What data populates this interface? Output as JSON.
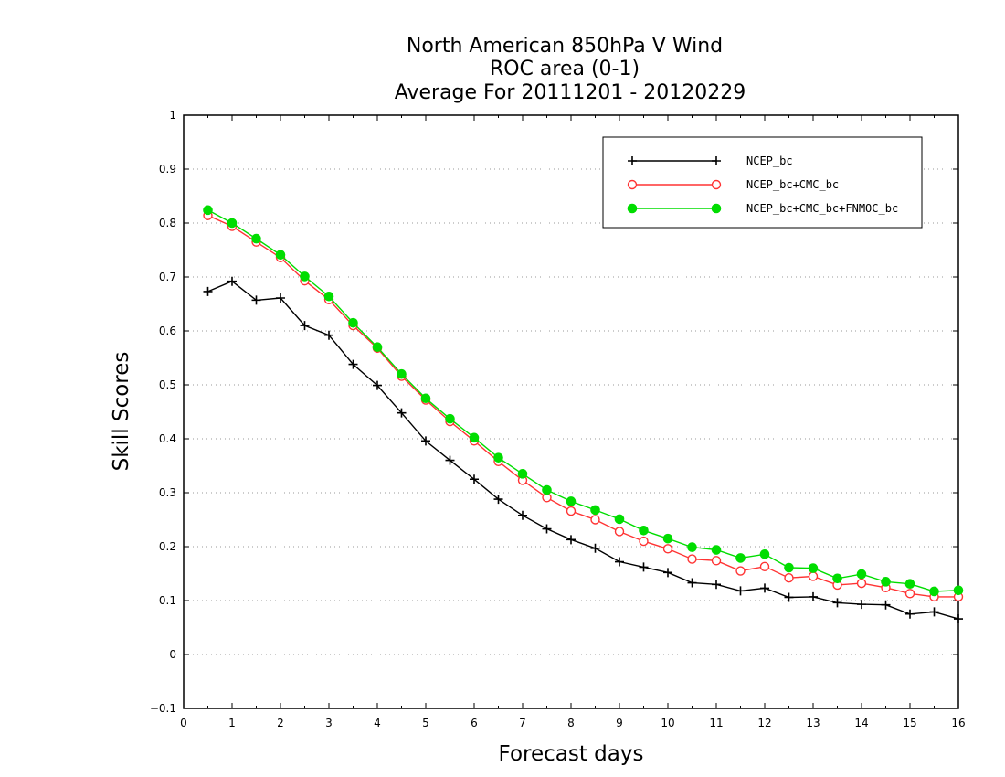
{
  "chart_data": {
    "type": "line",
    "title": [
      "North American 850hPa V Wind",
      "ROC area (0-1)",
      "Average For 20111201 - 20120229"
    ],
    "xlabel": "Forecast days",
    "ylabel": "Skill Scores",
    "xlim": [
      0,
      16
    ],
    "ylim": [
      -0.1,
      1
    ],
    "xticks": [
      "0",
      "1",
      "2",
      "3",
      "4",
      "5",
      "6",
      "7",
      "8",
      "9",
      "10",
      "11",
      "12",
      "13",
      "14",
      "15",
      "16"
    ],
    "yticks": [
      "−0.1",
      "0",
      "0.1",
      "0.2",
      "0.3",
      "0.4",
      "0.5",
      "0.6",
      "0.7",
      "0.8",
      "0.9",
      "1"
    ],
    "grid": true,
    "legend_position": "top-right",
    "x": [
      0.5,
      1,
      1.5,
      2,
      2.5,
      3,
      3.5,
      4,
      4.5,
      5,
      5.5,
      6,
      6.5,
      7,
      7.5,
      8,
      8.5,
      9,
      9.5,
      10,
      10.5,
      11,
      11.5,
      12,
      12.5,
      13,
      13.5,
      14,
      14.5,
      15,
      15.5,
      16
    ],
    "series": [
      {
        "name": "NCEP_bc",
        "color": "#000000",
        "marker": "plus",
        "values": [
          0.673,
          0.692,
          0.657,
          0.661,
          0.61,
          0.592,
          0.538,
          0.499,
          0.448,
          0.396,
          0.36,
          0.325,
          0.288,
          0.258,
          0.233,
          0.213,
          0.197,
          0.172,
          0.162,
          0.152,
          0.133,
          0.13,
          0.118,
          0.123,
          0.106,
          0.107,
          0.096,
          0.093,
          0.092,
          0.075,
          0.079,
          0.066
        ]
      },
      {
        "name": "NCEP_bc+CMC_bc",
        "color": "#ff3333",
        "marker": "open-circle",
        "values": [
          0.814,
          0.794,
          0.765,
          0.736,
          0.693,
          0.658,
          0.61,
          0.568,
          0.516,
          0.472,
          0.432,
          0.396,
          0.358,
          0.323,
          0.291,
          0.266,
          0.25,
          0.228,
          0.21,
          0.196,
          0.177,
          0.174,
          0.155,
          0.163,
          0.142,
          0.145,
          0.129,
          0.132,
          0.124,
          0.113,
          0.107,
          0.107
        ]
      },
      {
        "name": "NCEP_bc+CMC_bc+FNMOC_bc",
        "color": "#00dd00",
        "marker": "filled-circle",
        "values": [
          0.824,
          0.8,
          0.771,
          0.741,
          0.701,
          0.664,
          0.615,
          0.57,
          0.52,
          0.475,
          0.437,
          0.402,
          0.365,
          0.335,
          0.305,
          0.284,
          0.268,
          0.251,
          0.23,
          0.215,
          0.199,
          0.194,
          0.179,
          0.186,
          0.161,
          0.16,
          0.141,
          0.149,
          0.135,
          0.131,
          0.117,
          0.119
        ]
      }
    ]
  }
}
